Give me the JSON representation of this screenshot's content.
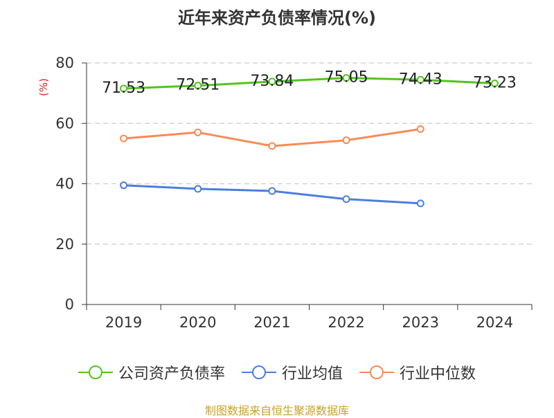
{
  "chart_data": {
    "type": "line",
    "title": "近年来资产负债率情况(%)",
    "ylabel": "(%)",
    "xlabel": "",
    "categories": [
      "2019",
      "2020",
      "2021",
      "2022",
      "2023",
      "2024"
    ],
    "ylim": [
      0,
      80
    ],
    "yticks": [
      0,
      20,
      40,
      60,
      80
    ],
    "grid": true,
    "legend_position": "bottom",
    "series": [
      {
        "name": "公司资产负债率",
        "color": "#52c41a",
        "values": [
          71.53,
          72.51,
          73.84,
          75.05,
          74.43,
          73.23
        ],
        "show_labels": true
      },
      {
        "name": "行业均值",
        "color": "#4a7fdc",
        "values": [
          39.5,
          38.3,
          37.6,
          34.9,
          33.5,
          null
        ],
        "show_labels": false
      },
      {
        "name": "行业中位数",
        "color": "#f68b55",
        "values": [
          55.0,
          57.0,
          52.5,
          54.4,
          58.1,
          null
        ],
        "show_labels": false
      }
    ]
  },
  "source_note": "制图数据来自恒生聚源数据库"
}
